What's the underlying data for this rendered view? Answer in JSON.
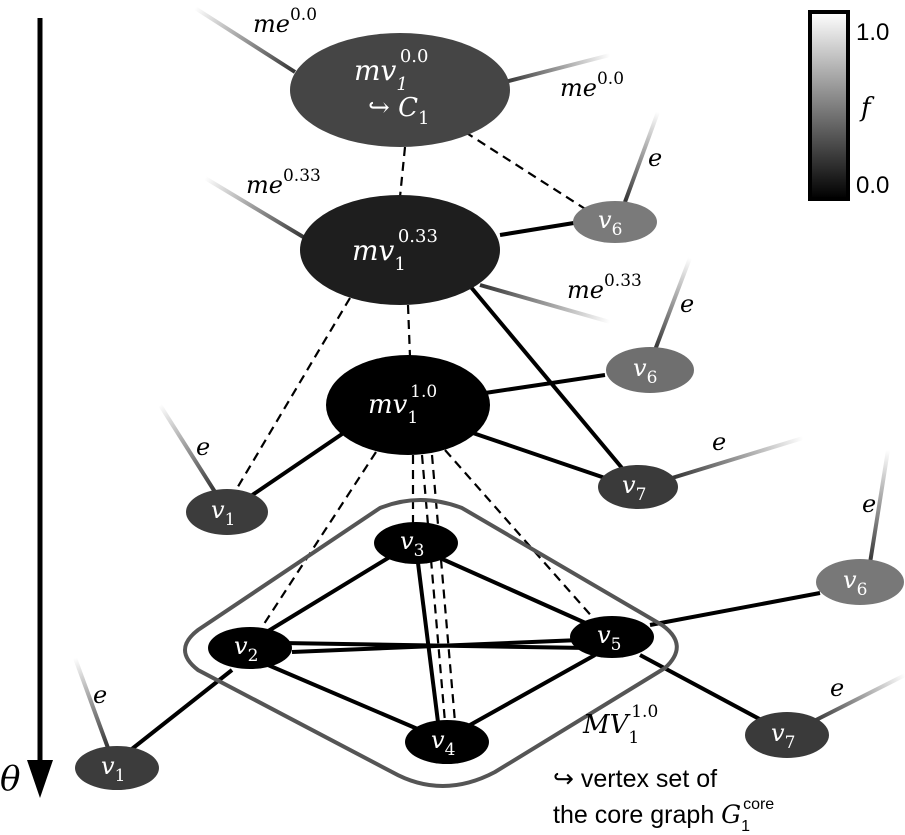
{
  "colorbar": {
    "max_label": "1.0",
    "min_label": "0.0",
    "variable": "f",
    "gradient_colors": [
      "#ffffff",
      "#000000"
    ]
  },
  "axis": {
    "label": "θ"
  },
  "meta_vertices": {
    "mv_0": {
      "base": "mv",
      "sub": "1",
      "sup": "0.0",
      "mapsto": "↪ ",
      "mapsto_var": "C",
      "mapsto_sub": "1",
      "color": "#454545"
    },
    "mv_033": {
      "base": "mv",
      "sub": "1",
      "sup": "0.33",
      "color": "#1e1e1e"
    },
    "mv_1": {
      "base": "mv",
      "sub": "1",
      "sup": "1.0",
      "color": "#000000"
    }
  },
  "meta_edge_labels": {
    "me_0_left": {
      "base": "me",
      "sup": "0.0"
    },
    "me_0_right": {
      "base": "me",
      "sup": "0.0"
    },
    "me_033_left": {
      "base": "me",
      "sup": "0.33"
    },
    "me_033_right": {
      "base": "me",
      "sup": "0.33"
    }
  },
  "vertices": {
    "v6_top": {
      "base": "v",
      "sub": "6",
      "color": "#7a7a7a"
    },
    "v6_mid": {
      "base": "v",
      "sub": "6",
      "color": "#6f6f6f"
    },
    "v7_mid": {
      "base": "v",
      "sub": "7",
      "color": "#3a3a3a"
    },
    "v1_mid": {
      "base": "v",
      "sub": "1",
      "color": "#3c3c3c"
    },
    "v3": {
      "base": "v",
      "sub": "3",
      "color": "#000000"
    },
    "v2": {
      "base": "v",
      "sub": "2",
      "color": "#000000"
    },
    "v5": {
      "base": "v",
      "sub": "5",
      "color": "#000000"
    },
    "v4": {
      "base": "v",
      "sub": "4",
      "color": "#000000"
    },
    "v6_bot": {
      "base": "v",
      "sub": "6",
      "color": "#787878"
    },
    "v7_bot": {
      "base": "v",
      "sub": "7",
      "color": "#3a3a3a"
    },
    "v1_bot": {
      "base": "v",
      "sub": "1",
      "color": "#3c3c3c"
    }
  },
  "edge_label": "e",
  "core_set": {
    "base": "MV",
    "sub": "1",
    "sup": "1.0",
    "desc_line1": "↪ vertex set of",
    "desc_line2": "the core graph ",
    "graph_var": "G",
    "graph_sub": "1",
    "graph_sup": "core",
    "border_color": "#555555"
  }
}
